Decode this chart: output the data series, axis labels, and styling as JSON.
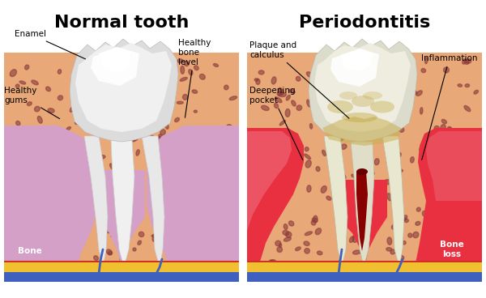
{
  "bg_color": "#ffffff",
  "title_left": "Normal tooth",
  "title_right": "Periodontitis",
  "title_fontsize": 16,
  "bone_color": "#E8A878",
  "bone_spot_color": "#8B3A3A",
  "gum_color_normal": "#D4A0C8",
  "gum_color_inflamed": "#E83040",
  "tooth_color": "#F0F0F0",
  "tooth_highlight": "#FFFFFF",
  "plaque_color": "#C8B870",
  "root_canal_color": "#C03030",
  "layer_blue": "#4060C0",
  "layer_yellow": "#F0C030",
  "layer_red": "#D03020",
  "annotation_color": "#000000",
  "label_bone_normal": "Bone",
  "label_bone_loss": "Bone\nloss",
  "label_enamel": "Enamel",
  "label_healthy_gums": "Healthy\ngums",
  "label_healthy_bone": "Healthy\nbone\nlevel",
  "label_plaque": "Plaque and\ncalculus",
  "label_deepening": "Deepening\npocket",
  "label_inflammation": "Inflammation"
}
